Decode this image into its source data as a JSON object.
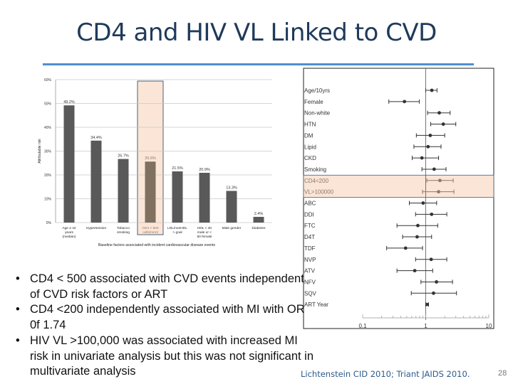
{
  "slide": {
    "title": "CD4 and HIV VL Linked to CVD",
    "bullets": [
      "CD4 < 500 associated with CVD events independent of CVD risk factors or ART",
      "CD4 <200 independently associated with MI with OR 0f 1.74",
      "HIV VL >100,000 was associated with increased MI risk in univariate analysis but this was not significant in multivariate analysis"
    ],
    "bullet_glyph": "•",
    "citation": "Lichtenstein CID 2010; Triant JAIDS 2010.",
    "page_number": "28",
    "colors": {
      "title": "#1f3a5a",
      "rule": "#4f8fd0",
      "highlight": "#fbe5d6",
      "bar": "#595959",
      "highlight_border": "#4a5f7a"
    }
  },
  "chart_data": [
    {
      "type": "bar",
      "title": "",
      "xlabel": "Baseline factors associated with incident cardiovascular disease events",
      "ylabel": "Attributable risk",
      "ylim": [
        0,
        60
      ],
      "yticks": [
        "0%",
        "10%",
        "20%",
        "30%",
        "40%",
        "50%",
        "60%"
      ],
      "grid": true,
      "categories": [
        "Age ≥ 42 years (median)",
        "Hypertension",
        "Tobacco smoking",
        "CD4 < 500 cells/mm3",
        "LDL/nonHDL > goal",
        "HDL < 40 male or < 50 female",
        "Male gender",
        "Diabetes"
      ],
      "values": [
        49.2,
        34.4,
        26.7,
        25.6,
        21.5,
        20.9,
        13.3,
        2.4
      ],
      "data_labels": [
        "49.2%",
        "34.4%",
        "26.7%",
        "25.6%",
        "21.5%",
        "20.9%",
        "13.3%",
        "2.4%"
      ],
      "highlighted_category": "CD4 < 500 cells/mm3"
    },
    {
      "type": "scatter",
      "subtype": "forest",
      "title": "",
      "xscale": "log",
      "xlim": [
        0.1,
        10
      ],
      "xticks": [
        "0.1",
        "1",
        "10"
      ],
      "reference_line": 1,
      "rows": [
        {
          "label": "Age/10yrs",
          "or": 1.25,
          "lo": 1.0,
          "hi": 1.51
        },
        {
          "label": "Female",
          "or": 0.46,
          "lo": 0.26,
          "hi": 0.79
        },
        {
          "label": "Non-white",
          "or": 1.64,
          "lo": 1.07,
          "hi": 2.44
        },
        {
          "label": "HTN",
          "or": 1.9,
          "lo": 1.2,
          "hi": 3.0
        },
        {
          "label": "DM",
          "or": 1.18,
          "lo": 0.71,
          "hi": 2.0
        },
        {
          "label": "Lipid",
          "or": 1.09,
          "lo": 0.65,
          "hi": 1.75
        },
        {
          "label": "CKD",
          "or": 0.87,
          "lo": 0.61,
          "hi": 1.6
        },
        {
          "label": "Smoking",
          "or": 1.36,
          "lo": 0.87,
          "hi": 2.1
        },
        {
          "label": "CD4<200",
          "or": 1.68,
          "lo": 1.04,
          "hi": 2.73,
          "highlighted": true
        },
        {
          "label": "VL>100000",
          "or": 1.6,
          "lo": 0.89,
          "hi": 2.8,
          "highlighted": true
        },
        {
          "label": "ABC",
          "or": 0.91,
          "lo": 0.55,
          "hi": 1.49
        },
        {
          "label": "DDI",
          "or": 1.24,
          "lo": 0.69,
          "hi": 2.16
        },
        {
          "label": "FTC",
          "or": 0.75,
          "lo": 0.35,
          "hi": 1.55
        },
        {
          "label": "D4T",
          "or": 0.73,
          "lo": 0.43,
          "hi": 1.24
        },
        {
          "label": "TDF",
          "or": 0.48,
          "lo": 0.24,
          "hi": 0.89
        },
        {
          "label": "NVP",
          "or": 1.22,
          "lo": 0.69,
          "hi": 2.16
        },
        {
          "label": "ATV",
          "or": 0.67,
          "lo": 0.35,
          "hi": 1.29
        },
        {
          "label": "NFV",
          "or": 1.48,
          "lo": 0.84,
          "hi": 2.66
        },
        {
          "label": "SQV",
          "or": 1.33,
          "lo": 0.59,
          "hi": 3.08
        },
        {
          "label": "ART Year",
          "or": 1.05,
          "lo": 1.0,
          "hi": 1.11
        }
      ]
    }
  ]
}
